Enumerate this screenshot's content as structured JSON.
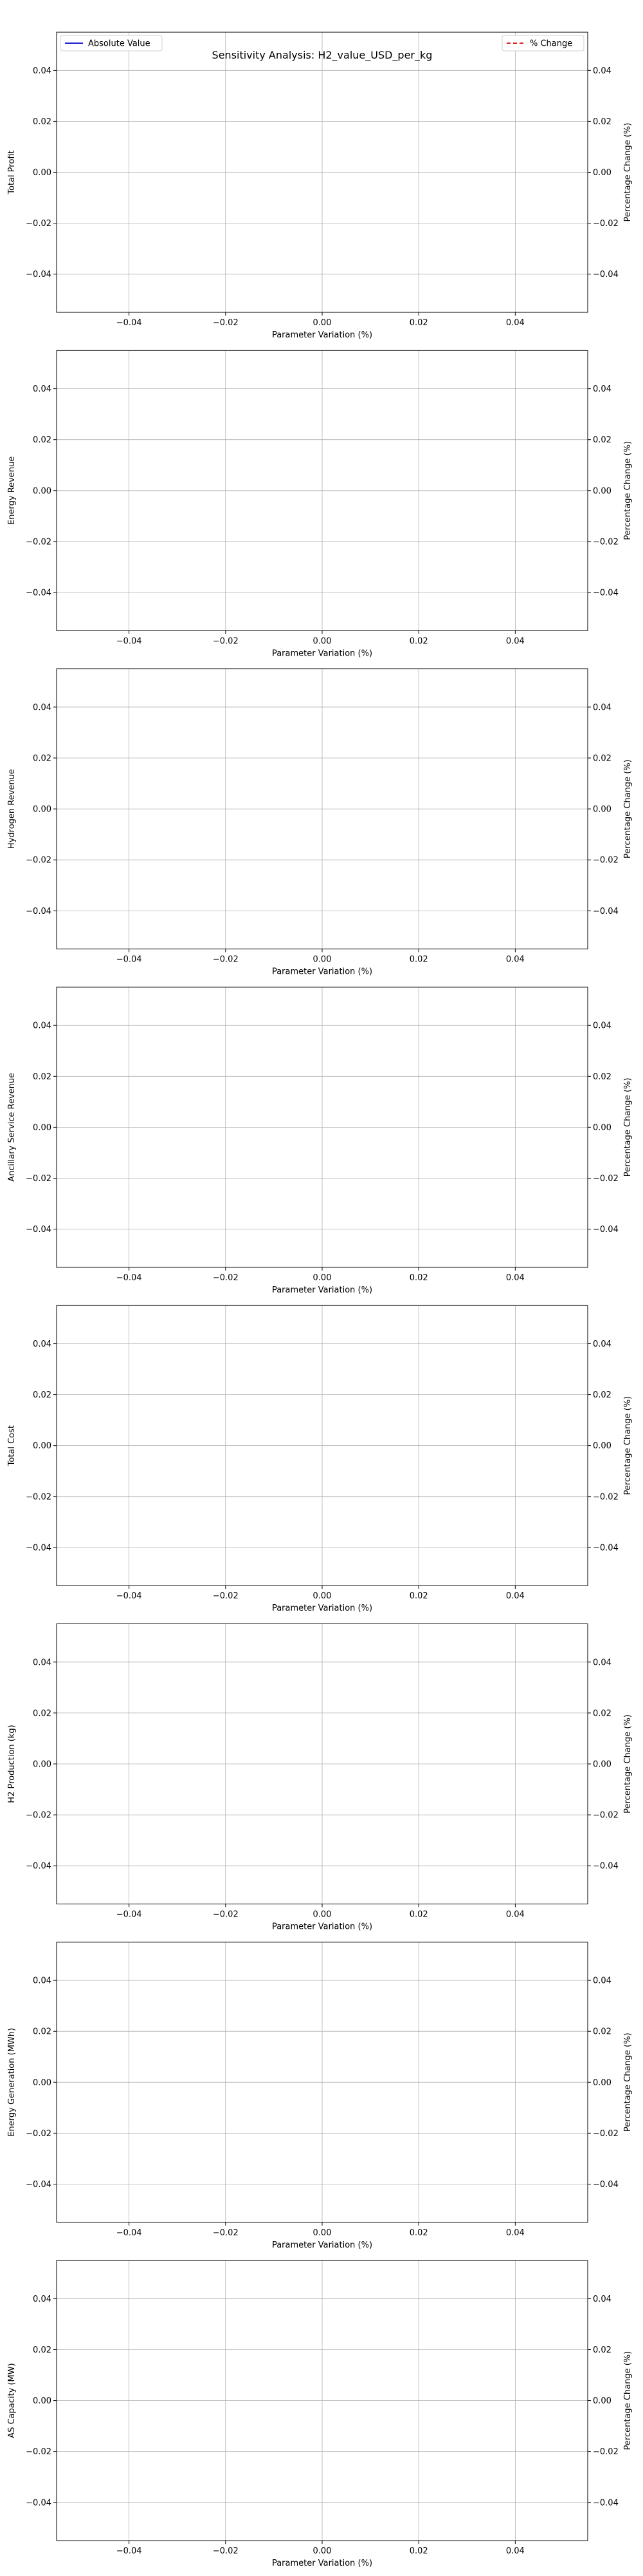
{
  "figure": {
    "title": "Sensitivity Analysis: H2_value_USD_per_kg"
  },
  "legend": {
    "absolute_label": "Absolute Value",
    "percent_label": "% Change",
    "absolute_color": "#1f1fd6",
    "percent_color": "#e02020"
  },
  "chart_data": [
    {
      "type": "line",
      "ylabel": "Total Profit",
      "ylabel_right": "Percentage Change (%)",
      "xlabel": "Parameter Variation (%)",
      "xlim": [
        -0.055,
        0.055
      ],
      "ylim": [
        -0.055,
        0.055
      ],
      "xticks": [
        "−0.04",
        "−0.02",
        "0.00",
        "0.02",
        "0.04"
      ],
      "yticks": [
        "0.04",
        "0.02",
        "0.00",
        "−0.02",
        "−0.04"
      ],
      "xtick_values": [
        -0.04,
        -0.02,
        0.0,
        0.02,
        0.04
      ],
      "ytick_values": [
        0.04,
        0.02,
        0.0,
        -0.02,
        -0.04
      ],
      "grid": true,
      "series": [],
      "has_title": true,
      "has_legend": true
    },
    {
      "type": "line",
      "ylabel": "Energy Revenue",
      "ylabel_right": "Percentage Change (%)",
      "xlabel": "Parameter Variation (%)",
      "xlim": [
        -0.055,
        0.055
      ],
      "ylim": [
        -0.055,
        0.055
      ],
      "xticks": [
        "−0.04",
        "−0.02",
        "0.00",
        "0.02",
        "0.04"
      ],
      "yticks": [
        "0.04",
        "0.02",
        "0.00",
        "−0.02",
        "−0.04"
      ],
      "xtick_values": [
        -0.04,
        -0.02,
        0.0,
        0.02,
        0.04
      ],
      "ytick_values": [
        0.04,
        0.02,
        0.0,
        -0.02,
        -0.04
      ],
      "grid": true,
      "series": []
    },
    {
      "type": "line",
      "ylabel": "Hydrogen Revenue",
      "ylabel_right": "Percentage Change (%)",
      "xlabel": "Parameter Variation (%)",
      "xlim": [
        -0.055,
        0.055
      ],
      "ylim": [
        -0.055,
        0.055
      ],
      "xticks": [
        "−0.04",
        "−0.02",
        "0.00",
        "0.02",
        "0.04"
      ],
      "yticks": [
        "0.04",
        "0.02",
        "0.00",
        "−0.02",
        "−0.04"
      ],
      "xtick_values": [
        -0.04,
        -0.02,
        0.0,
        0.02,
        0.04
      ],
      "ytick_values": [
        0.04,
        0.02,
        0.0,
        -0.02,
        -0.04
      ],
      "grid": true,
      "series": []
    },
    {
      "type": "line",
      "ylabel": "Ancillary Service Revenue",
      "ylabel_right": "Percentage Change (%)",
      "xlabel": "Parameter Variation (%)",
      "xlim": [
        -0.055,
        0.055
      ],
      "ylim": [
        -0.055,
        0.055
      ],
      "xticks": [
        "−0.04",
        "−0.02",
        "0.00",
        "0.02",
        "0.04"
      ],
      "yticks": [
        "0.04",
        "0.02",
        "0.00",
        "−0.02",
        "−0.04"
      ],
      "xtick_values": [
        -0.04,
        -0.02,
        0.0,
        0.02,
        0.04
      ],
      "ytick_values": [
        0.04,
        0.02,
        0.0,
        -0.02,
        -0.04
      ],
      "grid": true,
      "series": []
    },
    {
      "type": "line",
      "ylabel": "Total Cost",
      "ylabel_right": "Percentage Change (%)",
      "xlabel": "Parameter Variation (%)",
      "xlim": [
        -0.055,
        0.055
      ],
      "ylim": [
        -0.055,
        0.055
      ],
      "xticks": [
        "−0.04",
        "−0.02",
        "0.00",
        "0.02",
        "0.04"
      ],
      "yticks": [
        "0.04",
        "0.02",
        "0.00",
        "−0.02",
        "−0.04"
      ],
      "xtick_values": [
        -0.04,
        -0.02,
        0.0,
        0.02,
        0.04
      ],
      "ytick_values": [
        0.04,
        0.02,
        0.0,
        -0.02,
        -0.04
      ],
      "grid": true,
      "series": []
    },
    {
      "type": "line",
      "ylabel": "H2 Production (kg)",
      "ylabel_right": "Percentage Change (%)",
      "xlabel": "Parameter Variation (%)",
      "xlim": [
        -0.055,
        0.055
      ],
      "ylim": [
        -0.055,
        0.055
      ],
      "xticks": [
        "−0.04",
        "−0.02",
        "0.00",
        "0.02",
        "0.04"
      ],
      "yticks": [
        "0.04",
        "0.02",
        "0.00",
        "−0.02",
        "−0.04"
      ],
      "xtick_values": [
        -0.04,
        -0.02,
        0.0,
        0.02,
        0.04
      ],
      "ytick_values": [
        0.04,
        0.02,
        0.0,
        -0.02,
        -0.04
      ],
      "grid": true,
      "series": []
    },
    {
      "type": "line",
      "ylabel": "Energy Generation (MWh)",
      "ylabel_right": "Percentage Change (%)",
      "xlabel": "Parameter Variation (%)",
      "xlim": [
        -0.055,
        0.055
      ],
      "ylim": [
        -0.055,
        0.055
      ],
      "xticks": [
        "−0.04",
        "−0.02",
        "0.00",
        "0.02",
        "0.04"
      ],
      "yticks": [
        "0.04",
        "0.02",
        "0.00",
        "−0.02",
        "−0.04"
      ],
      "xtick_values": [
        -0.04,
        -0.02,
        0.0,
        0.02,
        0.04
      ],
      "ytick_values": [
        0.04,
        0.02,
        0.0,
        -0.02,
        -0.04
      ],
      "grid": true,
      "series": []
    },
    {
      "type": "line",
      "ylabel": "AS Capacity (MW)",
      "ylabel_right": "Percentage Change (%)",
      "xlabel": "Parameter Variation (%)",
      "xlim": [
        -0.055,
        0.055
      ],
      "ylim": [
        -0.055,
        0.055
      ],
      "xticks": [
        "−0.04",
        "−0.02",
        "0.00",
        "0.02",
        "0.04"
      ],
      "yticks": [
        "0.04",
        "0.02",
        "0.00",
        "−0.02",
        "−0.04"
      ],
      "xtick_values": [
        -0.04,
        -0.02,
        0.0,
        0.02,
        0.04
      ],
      "ytick_values": [
        0.04,
        0.02,
        0.0,
        -0.02,
        -0.04
      ],
      "grid": true,
      "series": []
    }
  ]
}
